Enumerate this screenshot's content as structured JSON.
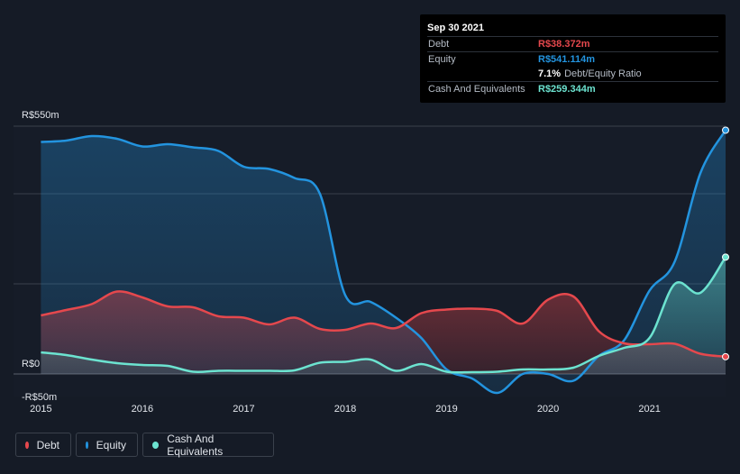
{
  "colors": {
    "debt": "#e5484d",
    "equity": "#2394df",
    "cash": "#6ce3d0",
    "background": "#151b26",
    "grid": "#39404b"
  },
  "tooltip": {
    "date": "Sep 30 2021",
    "rows": {
      "debt": {
        "label": "Debt",
        "value": "R$38.372m"
      },
      "equity": {
        "label": "Equity",
        "value": "R$541.114m"
      },
      "ratio": {
        "percent": "7.1%",
        "label": "Debt/Equity Ratio"
      },
      "cash": {
        "label": "Cash And Equivalents",
        "value": "R$259.344m"
      }
    }
  },
  "legend": {
    "debt": "Debt",
    "equity": "Equity",
    "cash": "Cash And Equivalents"
  },
  "chart_data": {
    "type": "area",
    "title": "",
    "xlabel": "",
    "ylabel": "",
    "y_tick_labels": [
      {
        "value": 550,
        "label": "R$550m"
      },
      {
        "value": 0,
        "label": "R$0"
      },
      {
        "value": -50,
        "label": "-R$50m"
      }
    ],
    "x_tick_labels": [
      "2015",
      "2016",
      "2017",
      "2018",
      "2019",
      "2020",
      "2021"
    ],
    "x_tick_values": [
      2015,
      2016,
      2017,
      2018,
      2019,
      2020,
      2021
    ],
    "xlim": [
      2014.73,
      2021.75
    ],
    "ylim": [
      -50,
      550
    ],
    "grid": true,
    "legend_position": "bottom-left",
    "series": [
      {
        "name": "Debt",
        "points": [
          [
            2015.0,
            130
          ],
          [
            2015.25,
            142
          ],
          [
            2015.5,
            155
          ],
          [
            2015.75,
            183
          ],
          [
            2016.0,
            170
          ],
          [
            2016.25,
            150
          ],
          [
            2016.5,
            148
          ],
          [
            2016.75,
            128
          ],
          [
            2017.0,
            125
          ],
          [
            2017.25,
            110
          ],
          [
            2017.5,
            125
          ],
          [
            2017.75,
            100
          ],
          [
            2018.0,
            98
          ],
          [
            2018.25,
            112
          ],
          [
            2018.5,
            102
          ],
          [
            2018.75,
            135
          ],
          [
            2019.0,
            143
          ],
          [
            2019.25,
            145
          ],
          [
            2019.5,
            140
          ],
          [
            2019.75,
            112
          ],
          [
            2020.0,
            165
          ],
          [
            2020.25,
            172
          ],
          [
            2020.5,
            95
          ],
          [
            2020.75,
            68
          ],
          [
            2021.0,
            66
          ],
          [
            2021.25,
            67
          ],
          [
            2021.5,
            45
          ],
          [
            2021.75,
            38.372
          ]
        ]
      },
      {
        "name": "Equity",
        "points": [
          [
            2015.0,
            515
          ],
          [
            2015.25,
            518
          ],
          [
            2015.5,
            528
          ],
          [
            2015.75,
            522
          ],
          [
            2016.0,
            505
          ],
          [
            2016.25,
            510
          ],
          [
            2016.5,
            503
          ],
          [
            2016.75,
            495
          ],
          [
            2017.0,
            460
          ],
          [
            2017.25,
            455
          ],
          [
            2017.5,
            435
          ],
          [
            2017.75,
            400
          ],
          [
            2018.0,
            175
          ],
          [
            2018.25,
            160
          ],
          [
            2018.5,
            125
          ],
          [
            2018.75,
            80
          ],
          [
            2019.0,
            10
          ],
          [
            2019.25,
            -10
          ],
          [
            2019.5,
            -42
          ],
          [
            2019.75,
            0
          ],
          [
            2020.0,
            0
          ],
          [
            2020.25,
            -15
          ],
          [
            2020.5,
            40
          ],
          [
            2020.75,
            75
          ],
          [
            2021.0,
            185
          ],
          [
            2021.25,
            250
          ],
          [
            2021.5,
            445
          ],
          [
            2021.75,
            541.114
          ]
        ]
      },
      {
        "name": "Cash And Equivalents",
        "points": [
          [
            2015.0,
            48
          ],
          [
            2015.25,
            42
          ],
          [
            2015.5,
            32
          ],
          [
            2015.75,
            24
          ],
          [
            2016.0,
            20
          ],
          [
            2016.25,
            18
          ],
          [
            2016.5,
            5
          ],
          [
            2016.75,
            7
          ],
          [
            2017.0,
            7
          ],
          [
            2017.25,
            7
          ],
          [
            2017.5,
            8
          ],
          [
            2017.75,
            25
          ],
          [
            2018.0,
            27
          ],
          [
            2018.25,
            32
          ],
          [
            2018.5,
            7
          ],
          [
            2018.75,
            22
          ],
          [
            2019.0,
            5
          ],
          [
            2019.25,
            4
          ],
          [
            2019.5,
            5
          ],
          [
            2019.75,
            10
          ],
          [
            2020.0,
            10
          ],
          [
            2020.25,
            14
          ],
          [
            2020.5,
            40
          ],
          [
            2020.75,
            58
          ],
          [
            2021.0,
            80
          ],
          [
            2021.25,
            200
          ],
          [
            2021.5,
            180
          ],
          [
            2021.75,
            259.344
          ]
        ]
      }
    ]
  }
}
